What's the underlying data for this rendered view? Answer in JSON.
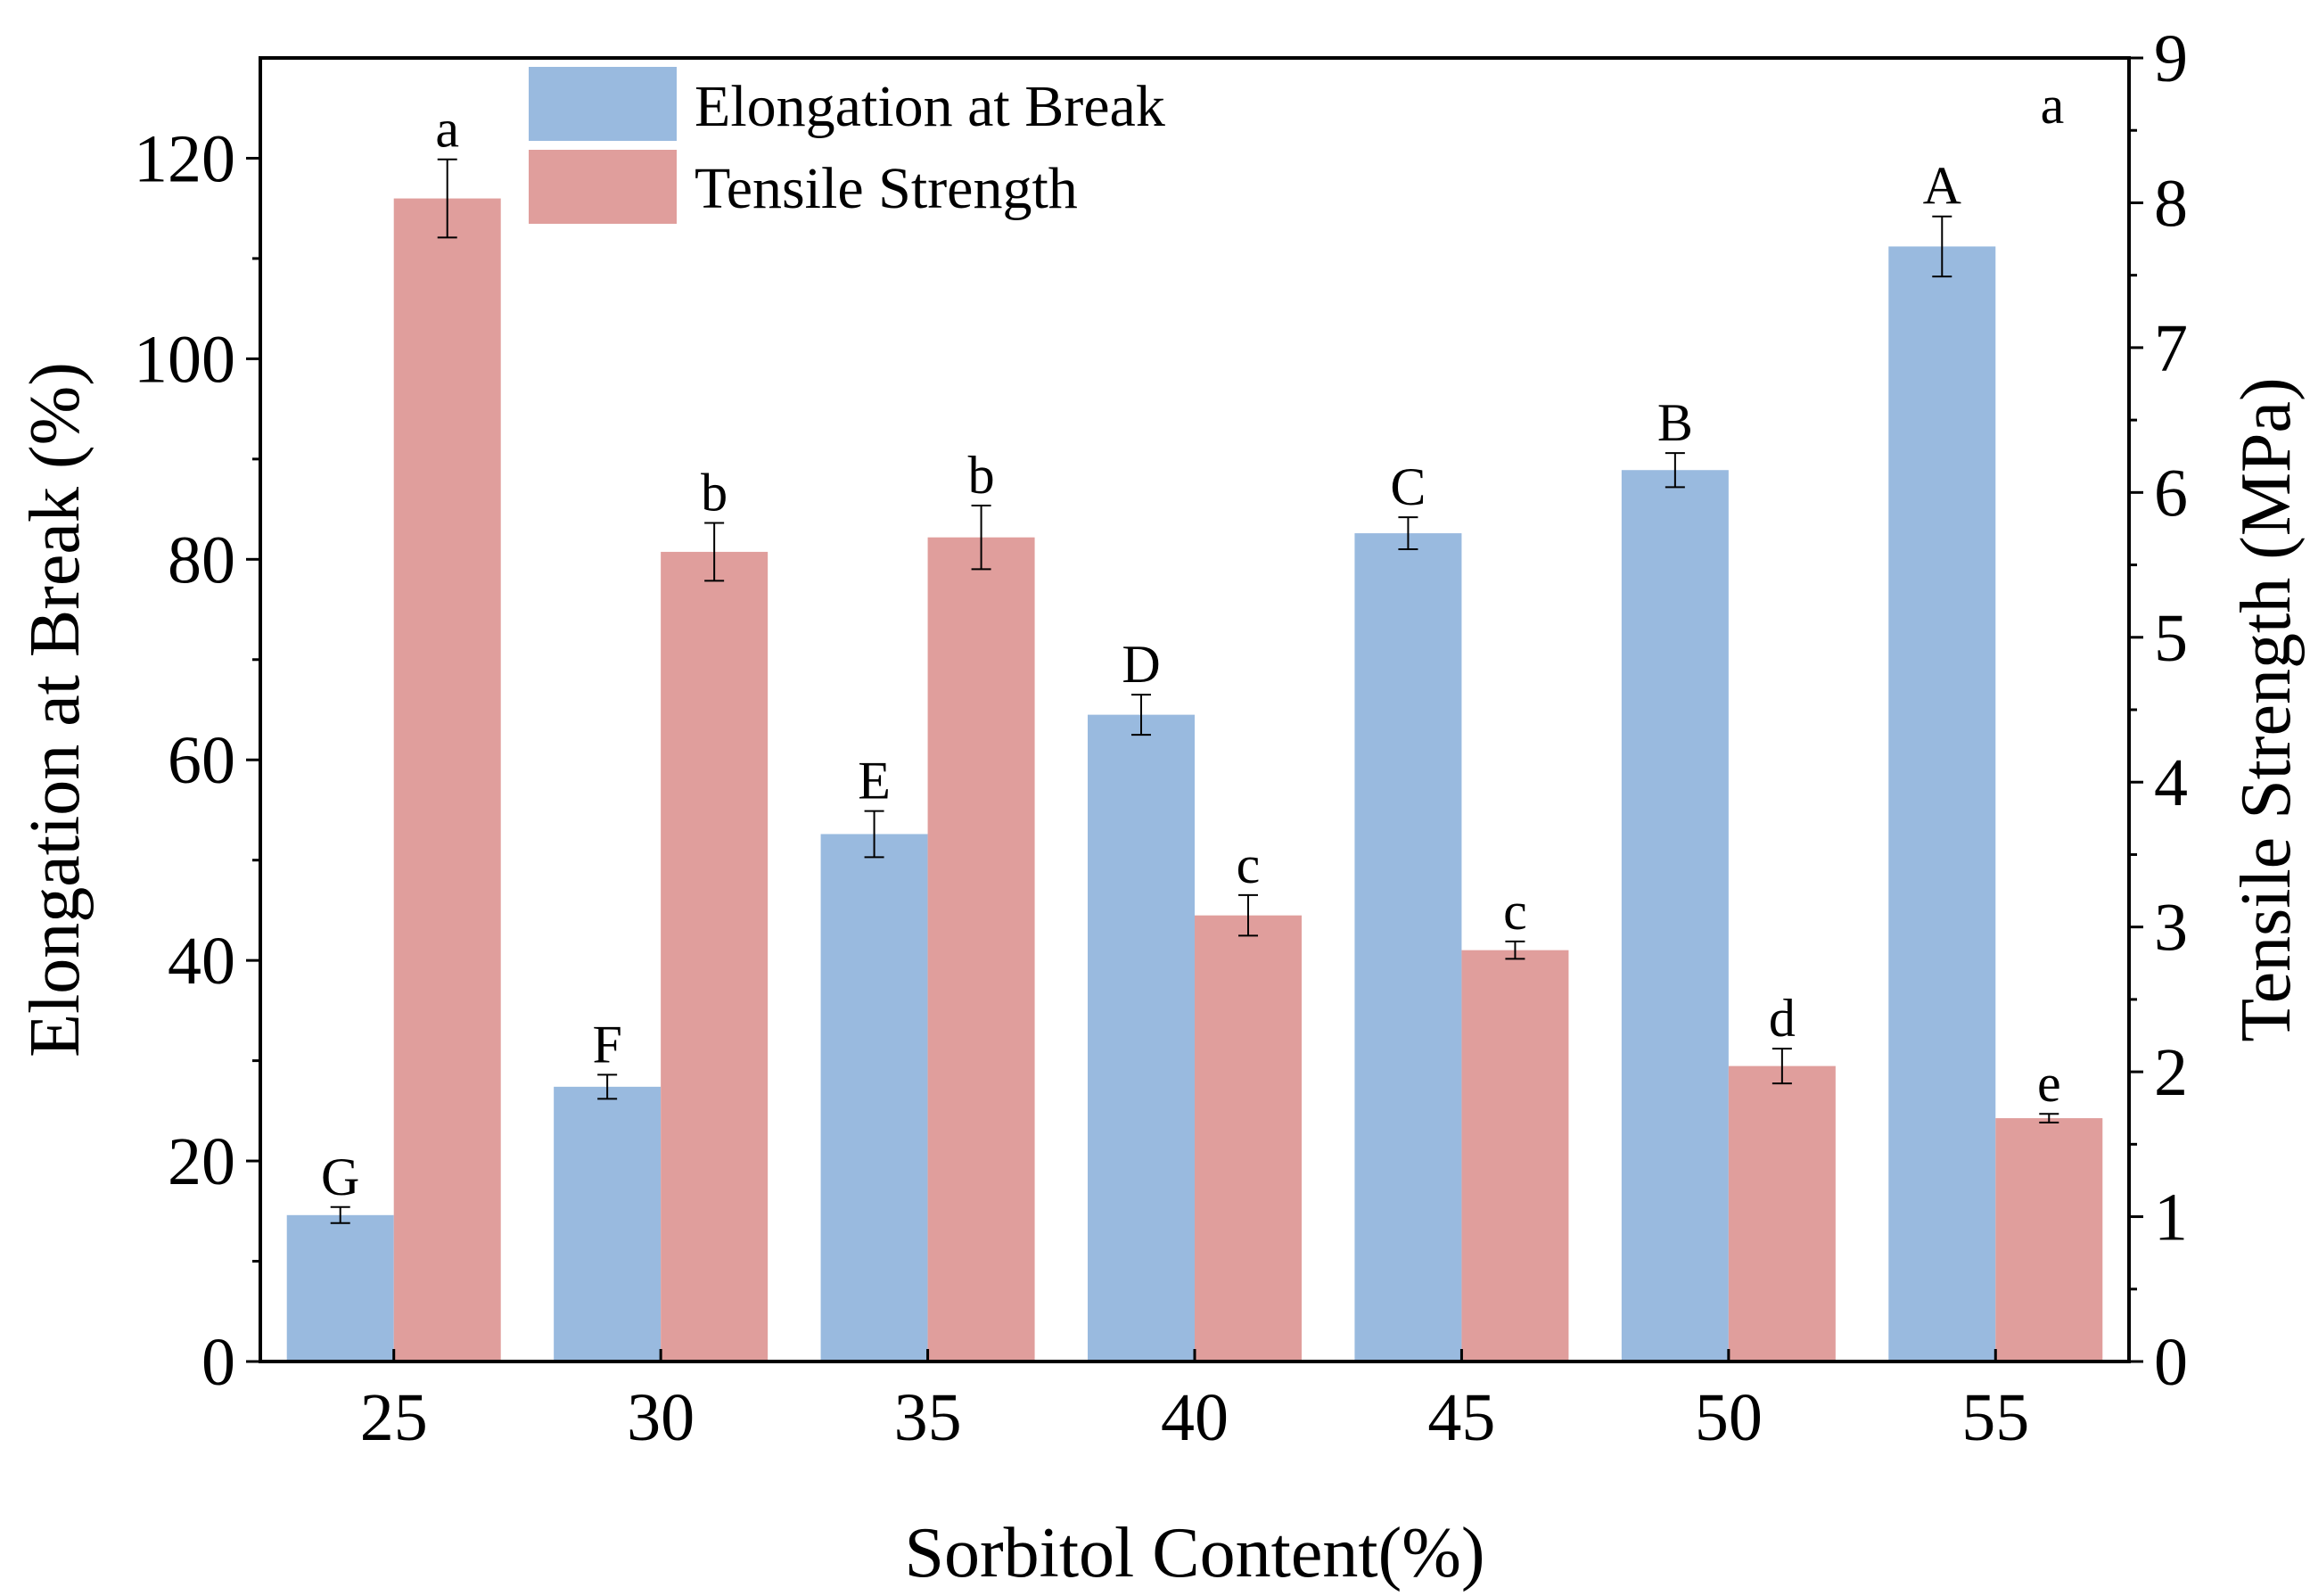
{
  "chart_data": {
    "type": "bar",
    "panel_label": "a",
    "categories": [
      "25",
      "30",
      "35",
      "40",
      "45",
      "50",
      "55"
    ],
    "xlabel": "Sorbitol Content(%)",
    "ylabel_left": "Elongation at Break (%)",
    "ylabel_right": "Tensile Strength (MPa)",
    "ylim_left": [
      0,
      130
    ],
    "ylim_right": [
      0,
      9
    ],
    "yticks_left": [
      0,
      20,
      40,
      60,
      80,
      100,
      120
    ],
    "yticks_right": [
      0,
      1,
      2,
      3,
      4,
      5,
      6,
      7,
      8,
      9
    ],
    "series": [
      {
        "name": "Elongation at Break",
        "axis": "left",
        "color": "#99BADF",
        "values": [
          14.6,
          27.4,
          52.6,
          64.5,
          82.6,
          88.9,
          111.2
        ],
        "errors": [
          0.8,
          1.2,
          2.3,
          2.0,
          1.6,
          1.7,
          3.0
        ],
        "labels": [
          "G",
          "F",
          "E",
          "D",
          "C",
          "B",
          "A"
        ]
      },
      {
        "name": "Tensile Strength",
        "axis": "right",
        "color": "#E09E9C",
        "values": [
          8.03,
          5.59,
          5.69,
          3.08,
          2.84,
          2.04,
          1.68
        ],
        "errors": [
          0.27,
          0.2,
          0.22,
          0.14,
          0.06,
          0.12,
          0.03
        ],
        "labels": [
          "a",
          "b",
          "b",
          "c",
          "c",
          "d",
          "e"
        ]
      }
    ],
    "legend_position": "top-center"
  }
}
